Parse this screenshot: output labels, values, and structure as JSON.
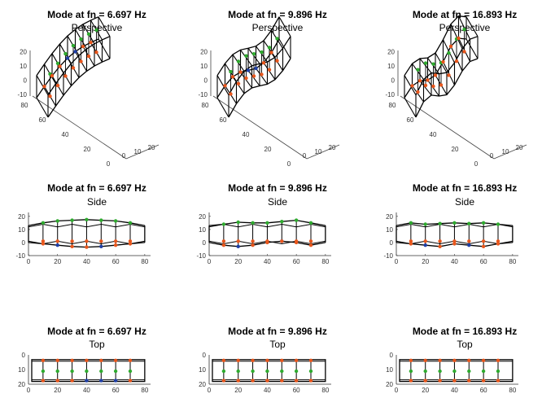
{
  "figure": {
    "rows": [
      {
        "view": "Perspective"
      },
      {
        "view": "Side"
      },
      {
        "view": "Top"
      }
    ]
  },
  "chart_data": {
    "type": "line",
    "title_prefix": "Mode at fn = ",
    "modes": [
      {
        "freq_label": "6.697 Hz",
        "fn": 6.697
      },
      {
        "freq_label": "9.896 Hz",
        "fn": 9.896
      },
      {
        "freq_label": "16.893 Hz",
        "fn": 16.893
      }
    ],
    "node_x": [
      10,
      20,
      30,
      40,
      50,
      60,
      70
    ],
    "frame_x": [
      0,
      10,
      20,
      30,
      40,
      50,
      60,
      70,
      80
    ],
    "perspective": {
      "x_ticks": [
        "0",
        "20",
        "40",
        "60",
        "80"
      ],
      "y_ticks": [
        "0",
        "10",
        "20"
      ],
      "z_ticks": [
        "-10",
        "0",
        "10",
        "20"
      ]
    },
    "side": {
      "x_ticks": [
        "0",
        "20",
        "40",
        "60",
        "80"
      ],
      "z_ticks": [
        "-10",
        "0",
        "10",
        "20"
      ],
      "xlim": [
        0,
        84
      ],
      "zlim": [
        -10,
        23
      ],
      "undeformed_top": 13,
      "undeformed_bottom": 0,
      "node_top_z": [
        [
          15,
          16.5,
          17,
          17.5,
          17,
          16.5,
          15
        ],
        [
          14,
          15.5,
          15,
          15,
          16,
          17,
          15
        ],
        [
          15,
          14,
          14.5,
          15,
          14.5,
          15,
          14
        ]
      ],
      "node_bottom_z": [
        [
          -1,
          -2,
          -3,
          -3.5,
          -3,
          -2,
          -1
        ],
        [
          -2,
          -3,
          -2,
          0,
          1,
          0,
          -2
        ],
        [
          -1,
          -2,
          -3,
          -1,
          -2,
          -3,
          -1
        ]
      ]
    },
    "top": {
      "x_ticks": [
        "0",
        "20",
        "40",
        "60",
        "80"
      ],
      "y_ticks": [
        "0",
        "10",
        "20"
      ],
      "xlim": [
        0,
        84
      ],
      "ylim": [
        0,
        20
      ],
      "frame_near": 1,
      "frame_far": 17,
      "center_y": 10
    },
    "series": [
      {
        "name": "top nodes",
        "color": "#2eaa2e"
      },
      {
        "name": "bottom nodes left",
        "color": "#e8561c"
      },
      {
        "name": "bottom nodes right",
        "color": "#1f3fa6"
      }
    ]
  }
}
